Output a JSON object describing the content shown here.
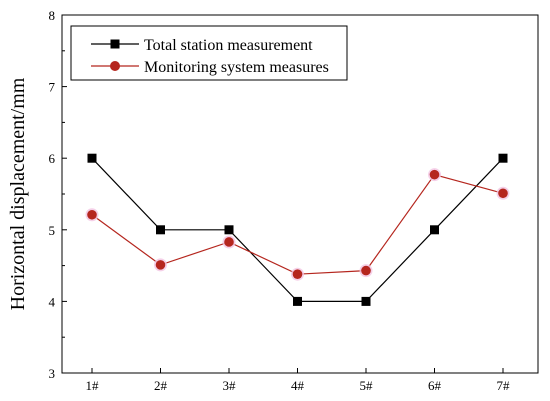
{
  "chart_data": {
    "type": "line",
    "categories": [
      "1#",
      "2#",
      "3#",
      "4#",
      "5#",
      "6#",
      "7#"
    ],
    "ylabel": "Horizontal displacement/mm",
    "xlabel": "",
    "ylim": [
      3,
      8
    ],
    "yticks": [
      "3",
      "4",
      "5",
      "6",
      "7",
      "8"
    ],
    "grid": false,
    "legend_position": "top-left",
    "series": [
      {
        "name": "Total station measurement",
        "values": [
          6,
          5,
          5,
          4,
          4,
          5,
          6
        ],
        "color": "#000000",
        "marker": "square"
      },
      {
        "name": "Monitoring system measures",
        "values": [
          5.21,
          4.51,
          4.83,
          4.38,
          4.43,
          5.77,
          5.51
        ],
        "color": "#b5261e",
        "marker": "circle"
      }
    ]
  }
}
